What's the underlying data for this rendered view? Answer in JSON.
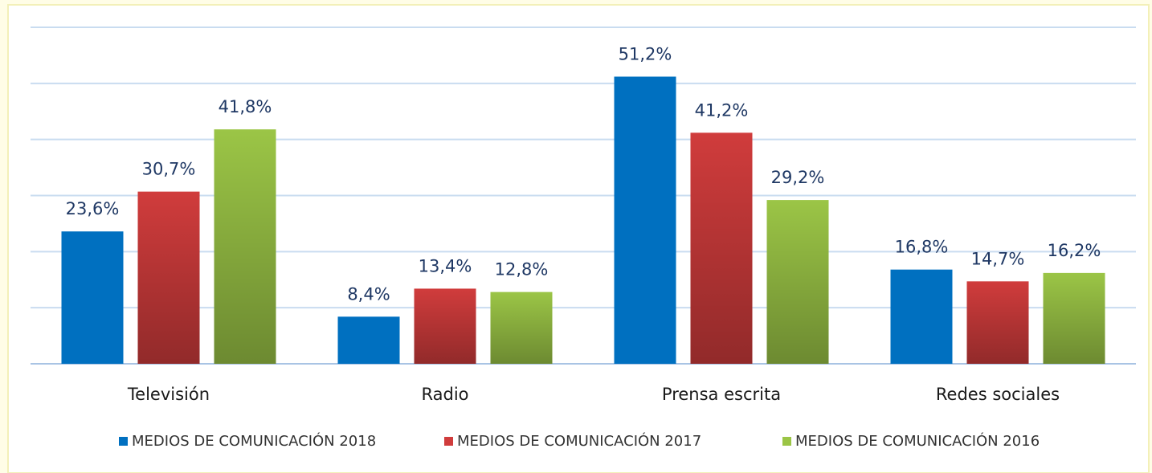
{
  "chart_data": {
    "type": "bar",
    "categories": [
      "Televisión",
      "Radio",
      "Prensa escrita",
      "Redes sociales"
    ],
    "series": [
      {
        "name": "MEDIOS DE COMUNICACIÓN 2018",
        "color": "#0070c0",
        "values": [
          23.6,
          8.4,
          51.2,
          16.8
        ],
        "value_labels": [
          "23,6%",
          "8,4%",
          "51,2%",
          "16,8%"
        ]
      },
      {
        "name": "MEDIOS DE COMUNICACIÓN 2017",
        "color": "#d03c3c",
        "values": [
          30.7,
          13.4,
          41.2,
          14.7
        ],
        "value_labels": [
          "30,7%",
          "13,4%",
          "41,2%",
          "14,7%"
        ]
      },
      {
        "name": "MEDIOS DE COMUNICACIÓN 2016",
        "color": "#9bc546",
        "values": [
          41.8,
          12.8,
          29.2,
          16.2
        ],
        "value_labels": [
          "41,8%",
          "12,8%",
          "29,2%",
          "16,2%"
        ]
      }
    ],
    "ylim": [
      0,
      60
    ],
    "yticks": [
      0,
      10,
      20,
      30,
      40,
      50,
      60
    ],
    "grid": true,
    "legend": "bottom"
  }
}
